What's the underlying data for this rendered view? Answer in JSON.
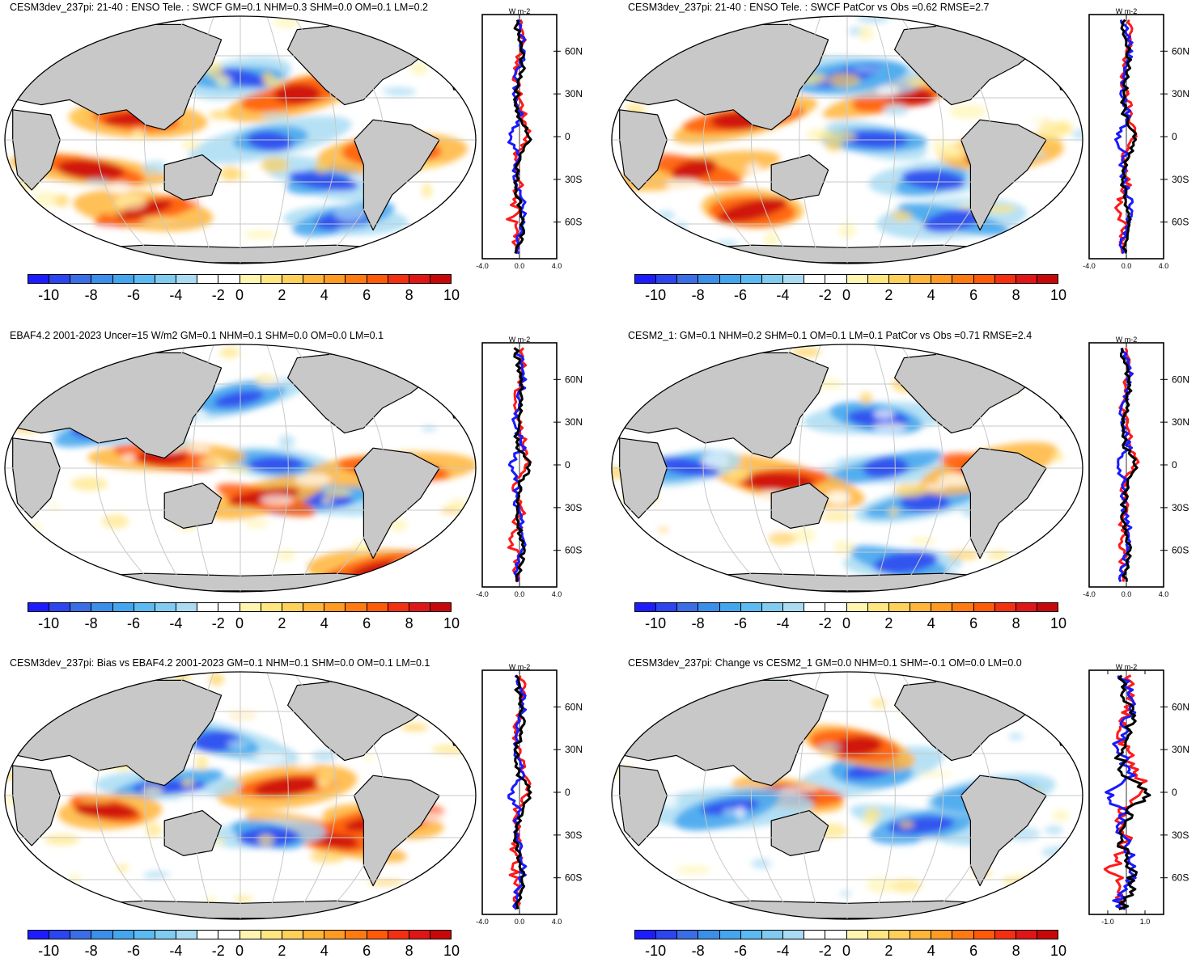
{
  "colorbar": {
    "colors": [
      "#1c1cff",
      "#2b45f0",
      "#3a6ee6",
      "#3b8fe8",
      "#44a6ee",
      "#5bbaf2",
      "#80cbef",
      "#a9dcf3",
      "#ffffff",
      "#ffffff",
      "#fff5b0",
      "#ffe680",
      "#ffd05a",
      "#ffb53a",
      "#ff9a22",
      "#ff7a10",
      "#ff5a08",
      "#f43010",
      "#e01616",
      "#c80808"
    ],
    "labels": [
      "-10",
      "-8",
      "-6",
      "-4",
      "-2",
      "0",
      "2",
      "4",
      "6",
      "8",
      "10"
    ]
  },
  "land_color": "#c8c8c8",
  "chart_data": [
    {
      "type": "heatmap",
      "title": "CESM3dev_237pi: 21-40 : ENSO Tele. : SWCF GM=0.1 NHM=0.3 SHM=0.0 OM=0.1 LM=0.2",
      "zonal_mean": {
        "unit": "W m-2",
        "xlim": [
          -4.0,
          4.0
        ],
        "xticklabels": [
          "-4.0",
          "0.0",
          "4.0"
        ],
        "ytick_labels": [
          "60N",
          "30N",
          "0",
          "30S",
          "60S"
        ]
      },
      "features": [
        [
          0.56,
          0.5,
          "neg"
        ],
        [
          0.68,
          0.66,
          "neg"
        ],
        [
          0.28,
          0.42,
          "pos"
        ],
        [
          0.62,
          0.32,
          "pos"
        ],
        [
          0.82,
          0.55,
          "pos"
        ],
        [
          0.18,
          0.62,
          "pos"
        ],
        [
          0.5,
          0.25,
          "neg"
        ],
        [
          0.3,
          0.78,
          "pos"
        ],
        [
          0.72,
          0.82,
          "neg"
        ]
      ]
    },
    {
      "type": "heatmap",
      "title": "CESM3dev_237pi: 21-40 : ENSO Tele. : SWCF PatCor vs Obs =0.62 RMSE=2.7",
      "zonal_mean": {
        "unit": "W m-2",
        "xlim": [
          -4.0,
          4.0
        ],
        "xticklabels": [
          "-4.0",
          "0.0",
          "4.0"
        ],
        "ytick_labels": [
          "60N",
          "30N",
          "0",
          "30S",
          "60S"
        ]
      },
      "features": [
        [
          0.56,
          0.5,
          "neg"
        ],
        [
          0.68,
          0.66,
          "neg"
        ],
        [
          0.28,
          0.42,
          "pos"
        ],
        [
          0.62,
          0.32,
          "pos"
        ],
        [
          0.82,
          0.55,
          "pos"
        ],
        [
          0.18,
          0.62,
          "pos"
        ],
        [
          0.5,
          0.25,
          "neg"
        ],
        [
          0.3,
          0.78,
          "pos"
        ],
        [
          0.72,
          0.82,
          "neg"
        ]
      ]
    },
    {
      "type": "heatmap",
      "title": "EBAF4.2 2001-2023 Uncer=15 W/m2 GM=0.1 NHM=0.1 SHM=0.0 OM=0.0 LM=0.1",
      "zonal_mean": {
        "unit": "W m-2",
        "xlim": [
          -4.0,
          4.0
        ],
        "xticklabels": [
          "-4.0",
          "0.0",
          "4.0"
        ],
        "ytick_labels": [
          "60N",
          "30N",
          "0",
          "30S",
          "60S"
        ]
      },
      "features": [
        [
          0.58,
          0.48,
          "neg"
        ],
        [
          0.68,
          0.62,
          "neg"
        ],
        [
          0.34,
          0.46,
          "pos"
        ],
        [
          0.55,
          0.62,
          "pos"
        ],
        [
          0.82,
          0.5,
          "pos"
        ],
        [
          0.2,
          0.35,
          "neg"
        ],
        [
          0.5,
          0.22,
          "neg"
        ],
        [
          0.78,
          0.9,
          "pos"
        ]
      ]
    },
    {
      "type": "heatmap",
      "title": "CESM2_1: GM=0.1 NHM=0.2 SHM=0.1 OM=0.1 LM=0.1 PatCor vs Obs =0.71 RMSE=2.4",
      "zonal_mean": {
        "unit": "W m-2",
        "xlim": [
          -4.0,
          4.0
        ],
        "xticklabels": [
          "-4.0",
          "0.0",
          "4.0"
        ],
        "ytick_labels": [
          "60N",
          "30N",
          "0",
          "30S",
          "60S"
        ]
      },
      "features": [
        [
          0.58,
          0.5,
          "neg"
        ],
        [
          0.66,
          0.64,
          "neg"
        ],
        [
          0.36,
          0.55,
          "pos"
        ],
        [
          0.8,
          0.5,
          "pos"
        ],
        [
          0.56,
          0.3,
          "neg"
        ],
        [
          0.16,
          0.5,
          "neg"
        ],
        [
          0.62,
          0.88,
          "neg"
        ]
      ]
    },
    {
      "type": "heatmap",
      "title": "CESM3dev_237pi: Bias vs EBAF4.2 2001-2023 GM=0.1 NHM=0.1 SHM=0.0 OM=0.1 LM=0.1",
      "zonal_mean": {
        "unit": "W m-2",
        "xlim": [
          -4.0,
          4.0
        ],
        "xticklabels": [
          "-4.0",
          "0.0",
          "4.0"
        ],
        "ytick_labels": [
          "60N",
          "30N",
          "0",
          "30S",
          "60S"
        ]
      },
      "features": [
        [
          0.6,
          0.46,
          "pos"
        ],
        [
          0.35,
          0.46,
          "neg"
        ],
        [
          0.22,
          0.56,
          "pos"
        ],
        [
          0.68,
          0.66,
          "pos"
        ],
        [
          0.56,
          0.66,
          "neg"
        ],
        [
          0.8,
          0.6,
          "pos"
        ],
        [
          0.45,
          0.28,
          "neg"
        ]
      ]
    },
    {
      "type": "heatmap",
      "title": "CESM3dev_237pi: Change vs CESM2_1 GM=0.0 NHM=0.1 SHM=-0.1 OM=0.0 LM=0.0",
      "zonal_mean": {
        "unit": "W m-2",
        "xlim": [
          -2.0,
          2.0
        ],
        "xticklabels": [
          "-1.0",
          "1.0"
        ],
        "ytick_labels": [
          "60N",
          "30N",
          "0",
          "30S",
          "60S"
        ]
      },
      "features": [
        [
          0.55,
          0.4,
          "neg"
        ],
        [
          0.66,
          0.62,
          "neg"
        ],
        [
          0.38,
          0.5,
          "pos"
        ],
        [
          0.52,
          0.3,
          "pos"
        ],
        [
          0.25,
          0.55,
          "neg"
        ],
        [
          0.8,
          0.5,
          "neg"
        ]
      ]
    }
  ]
}
